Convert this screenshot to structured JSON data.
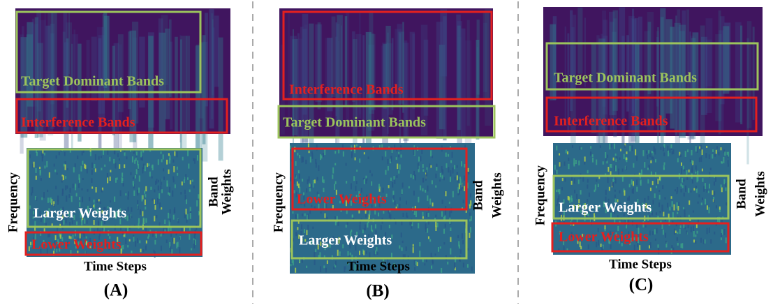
{
  "panels": [
    {
      "label": "(A)",
      "top_boxes": [
        {
          "label": "Target Dominant Bands"
        },
        {
          "label": "Interference Bands"
        }
      ],
      "bottom_boxes": [
        {
          "label": "Larger Weights"
        },
        {
          "label": "Lower Weights"
        }
      ],
      "y_axis_label": "Frequency",
      "x_axis_label": "Time Steps",
      "right_label_lines": [
        "Band",
        "Weights"
      ]
    },
    {
      "label": "(B)",
      "top_boxes": [
        {
          "label": "Interference Bands"
        },
        {
          "label": "Target Dominant Bands"
        }
      ],
      "bottom_boxes": [
        {
          "label": "Lower Weights"
        },
        {
          "label": "Larger Weights"
        }
      ],
      "y_axis_label": "Frequency",
      "x_axis_label": "Time Steps",
      "right_label_lines": [
        "Band",
        "Weights"
      ]
    },
    {
      "label": "(C)",
      "top_boxes": [
        {
          "label": "Target Dominant Bands"
        },
        {
          "label": "Interference Bands"
        }
      ],
      "bottom_boxes": [
        {
          "label": "Larger Weights"
        },
        {
          "label": "Lower Weights"
        }
      ],
      "y_axis_label": "Frequency",
      "x_axis_label": "Time Steps",
      "right_label_lines": [
        "Band",
        "Weights"
      ]
    }
  ]
}
